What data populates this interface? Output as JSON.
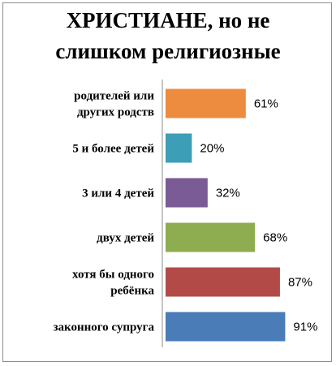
{
  "chart_data": {
    "type": "bar",
    "orientation": "horizontal",
    "title": [
      "ХРИСТИАНЕ, но не",
      "слишком религиозные"
    ],
    "categories": [
      [
        "родителей или",
        "других родств"
      ],
      [
        "5 и более детей"
      ],
      [
        "3 или 4 детей"
      ],
      [
        "двух детей"
      ],
      [
        "хотя бы одного",
        "ребёнка"
      ],
      [
        "законного супруга"
      ]
    ],
    "values": [
      61,
      20,
      32,
      68,
      87,
      91
    ],
    "value_labels": [
      "61%",
      "20%",
      "32%",
      "68%",
      "87%",
      "91%"
    ],
    "colors": [
      "#ed8b3e",
      "#3d9eb8",
      "#7b5b96",
      "#8eac50",
      "#b24b48",
      "#4a7cb8"
    ],
    "xlim": [
      0,
      100
    ],
    "grid": false,
    "legend": false,
    "axis_line": true
  }
}
